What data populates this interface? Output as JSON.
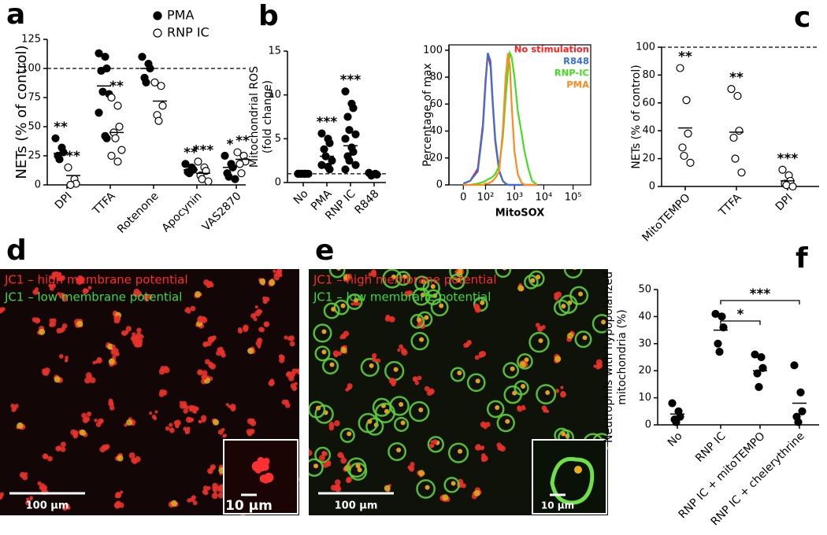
{
  "chart_data": [
    {
      "type": "strip",
      "label": "a",
      "ylabel": "NETs  (% of control)",
      "categories": [
        "DPI",
        "TTFA",
        "Rotenone",
        "Apocynin",
        "VAS2870"
      ],
      "ylim": [
        0,
        125
      ],
      "yticks": [
        0,
        25,
        50,
        75,
        100,
        125
      ],
      "ref_line": 100,
      "series": [
        {
          "name": "PMA",
          "marker": "filled",
          "color": "#000000",
          "values": [
            [
              40,
              32,
              28,
              25,
              22
            ],
            [
              113,
              110,
              100,
              98,
              80,
              78,
              62,
              42,
              40
            ],
            [
              110,
              104,
              100,
              92,
              88
            ],
            [
              18,
              15,
              13,
              11,
              10
            ],
            [
              25,
              18,
              15,
              10,
              7,
              5
            ]
          ],
          "means": [
            27,
            85,
            100,
            13,
            15
          ],
          "stars": [
            "**",
            null,
            null,
            "**",
            "*"
          ]
        },
        {
          "name": "RNP IC",
          "marker": "open",
          "color": "#000000",
          "values": [
            [
              15,
              5,
              1,
              0
            ],
            [
              75,
              68,
              50,
              45,
              40,
              30,
              25,
              20
            ],
            [
              88,
              85,
              68,
              60,
              55
            ],
            [
              20,
              15,
              12,
              8,
              5,
              3
            ],
            [
              28,
              25,
              20,
              18,
              10
            ]
          ],
          "means": [
            8,
            45,
            72,
            10,
            22
          ],
          "stars": [
            "**",
            "**",
            null,
            "***",
            "**"
          ]
        }
      ]
    },
    {
      "type": "strip",
      "label": "b",
      "ylabel": [
        "Mitochondrial ROS",
        "(fold change)"
      ],
      "categories": [
        "No",
        "PMA",
        "RNP IC",
        "R848"
      ],
      "ylim": [
        0,
        15
      ],
      "yticks": [
        0,
        5,
        10,
        15
      ],
      "ref_line": 1,
      "series": [
        {
          "name": null,
          "marker": "filled",
          "color": "#000000",
          "values": [
            [
              1,
              1,
              1,
              1,
              1,
              1,
              1,
              1
            ],
            [
              5.6,
              5,
              4.5,
              3.8,
              3,
              2.5,
              2,
              1.8,
              1.5
            ],
            [
              10.4,
              9,
              8.5,
              7.5,
              6,
              5.5,
              5,
              4,
              3.5,
              3,
              2.5,
              2,
              1.5
            ],
            [
              1.1,
              1,
              0.9,
              0.8
            ]
          ],
          "means": [
            1,
            3,
            4.2,
            0.95
          ],
          "stars": [
            null,
            "***",
            "***",
            null
          ]
        }
      ]
    },
    {
      "type": "line",
      "ylabel": "Percentage of max",
      "xlabel": "MitoSOX",
      "xscale": "biexponential",
      "xlim": [
        -50,
        400000
      ],
      "xticks": [
        0,
        {
          "value": 100,
          "label": "10²"
        },
        {
          "value": 1000,
          "label": "10³"
        },
        {
          "value": 10000,
          "label": "10⁴"
        },
        {
          "value": 100000,
          "label": "10⁵"
        }
      ],
      "ylim": [
        0,
        104
      ],
      "yticks": [
        0,
        20,
        40,
        60,
        80,
        100
      ],
      "x": [
        0,
        20,
        50,
        80,
        100,
        120,
        150,
        180,
        220,
        300,
        400,
        500,
        600,
        700,
        800,
        1000,
        1300,
        1700,
        2200,
        3000,
        4000,
        6000
      ],
      "series": [
        {
          "name": "No stimulation",
          "color": "#ff2020",
          "values": [
            1,
            3,
            12,
            45,
            78,
            97,
            88,
            60,
            32,
            10,
            3,
            1,
            0,
            0,
            0,
            0,
            0,
            0,
            0,
            0,
            0,
            0
          ]
        },
        {
          "name": "R848",
          "color": "#3a6fd8",
          "values": [
            1,
            3,
            10,
            42,
            75,
            98,
            92,
            62,
            34,
            11,
            3,
            1,
            0,
            0,
            0,
            0,
            0,
            0,
            0,
            0,
            0,
            0
          ]
        },
        {
          "name": "RNP-IC",
          "color": "#44dd22",
          "values": [
            0,
            0,
            1,
            2,
            3,
            4,
            5,
            6,
            8,
            14,
            35,
            65,
            85,
            98,
            95,
            80,
            55,
            40,
            25,
            12,
            3,
            0
          ]
        },
        {
          "name": "PMA",
          "color": "#ff8a1e",
          "values": [
            0,
            0,
            0,
            0,
            1,
            1,
            2,
            3,
            5,
            10,
            40,
            80,
            98,
            88,
            60,
            25,
            8,
            2,
            0,
            0,
            0,
            0
          ]
        }
      ]
    },
    {
      "type": "strip",
      "label": "c",
      "ylabel": "NETs (% of control)",
      "categories": [
        "MitoTEMPO",
        "TTFA",
        "DPI"
      ],
      "ylim": [
        0,
        100
      ],
      "yticks": [
        0,
        20,
        40,
        60,
        80,
        100
      ],
      "ref_line": 100,
      "series": [
        {
          "name": null,
          "marker": "open",
          "color": "#000000",
          "values": [
            [
              85,
              62,
              38,
              28,
              22,
              17
            ],
            [
              70,
              65,
              40,
              35,
              20,
              10
            ],
            [
              12,
              8,
              4,
              2,
              1,
              0
            ]
          ],
          "means": [
            42,
            39,
            4
          ],
          "stars": [
            "**",
            "**",
            "***"
          ]
        }
      ]
    },
    {
      "type": "strip",
      "label": "f",
      "ylabel": [
        "Neutrophils with hypopolarized",
        "mitochondria (%)"
      ],
      "categories": [
        "No",
        "RNP IC",
        "RNP IC + mitoTEMPO",
        "RNP IC + chelerythrine"
      ],
      "ylim": [
        0,
        50
      ],
      "yticks": [
        0,
        10,
        20,
        30,
        40,
        50
      ],
      "comparisons": [
        {
          "from": 1,
          "to": 2,
          "label": "*"
        },
        {
          "from": 1,
          "to": 3,
          "label": "***"
        }
      ],
      "series": [
        {
          "name": null,
          "marker": "filled",
          "color": "#000000",
          "values": [
            [
              8,
              5,
              3,
              2,
              1
            ],
            [
              41,
              40,
              36,
              30,
              27
            ],
            [
              26,
              25,
              21,
              19,
              14
            ],
            [
              22,
              12,
              5,
              3,
              1
            ]
          ],
          "means": [
            4,
            35,
            20,
            8
          ],
          "stars": [
            null,
            null,
            null,
            null
          ]
        }
      ]
    }
  ],
  "images": [
    {
      "label": "d",
      "legend": [
        "JC1 – high membrane potential",
        "JC1 – low membrane potential"
      ],
      "scale_bar": "100 µm",
      "inset_scale_bar": "10 µm"
    },
    {
      "label": "e",
      "legend": [
        "JC1 – high membrane potential",
        "JC1 – low membrane potential"
      ],
      "scale_bar": "100 µm",
      "inset_scale_bar": "10 µm"
    }
  ]
}
